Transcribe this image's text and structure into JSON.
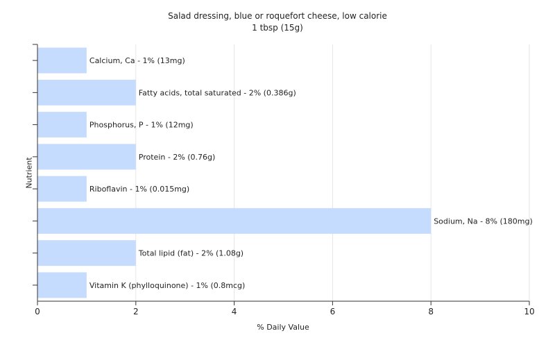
{
  "chart_data": {
    "type": "bar",
    "orientation": "horizontal",
    "title": "Salad dressing, blue or roquefort cheese, low calorie",
    "subtitle": "1 tbsp (15g)",
    "xlabel": "% Daily Value",
    "ylabel": "Nutrient",
    "xlim": [
      0,
      10
    ],
    "xticks": [
      0,
      2,
      4,
      6,
      8,
      10
    ],
    "grid": true,
    "bar_color": "#c6dcff",
    "categories": [
      "Calcium, Ca",
      "Fatty acids, total saturated",
      "Phosphorus, P",
      "Protein",
      "Riboflavin",
      "Sodium, Na",
      "Total lipid (fat)",
      "Vitamin K (phylloquinone)"
    ],
    "values": [
      1,
      2,
      1,
      2,
      1,
      8,
      2,
      1
    ],
    "labels": [
      "Calcium, Ca - 1% (13mg)",
      "Fatty acids, total saturated - 2% (0.386g)",
      "Phosphorus, P - 1% (12mg)",
      "Protein - 2% (0.76g)",
      "Riboflavin - 1% (0.015mg)",
      "Sodium, Na - 8% (180mg)",
      "Total lipid (fat) - 2% (1.08g)",
      "Vitamin K (phylloquinone) - 1% (0.8mcg)"
    ]
  }
}
